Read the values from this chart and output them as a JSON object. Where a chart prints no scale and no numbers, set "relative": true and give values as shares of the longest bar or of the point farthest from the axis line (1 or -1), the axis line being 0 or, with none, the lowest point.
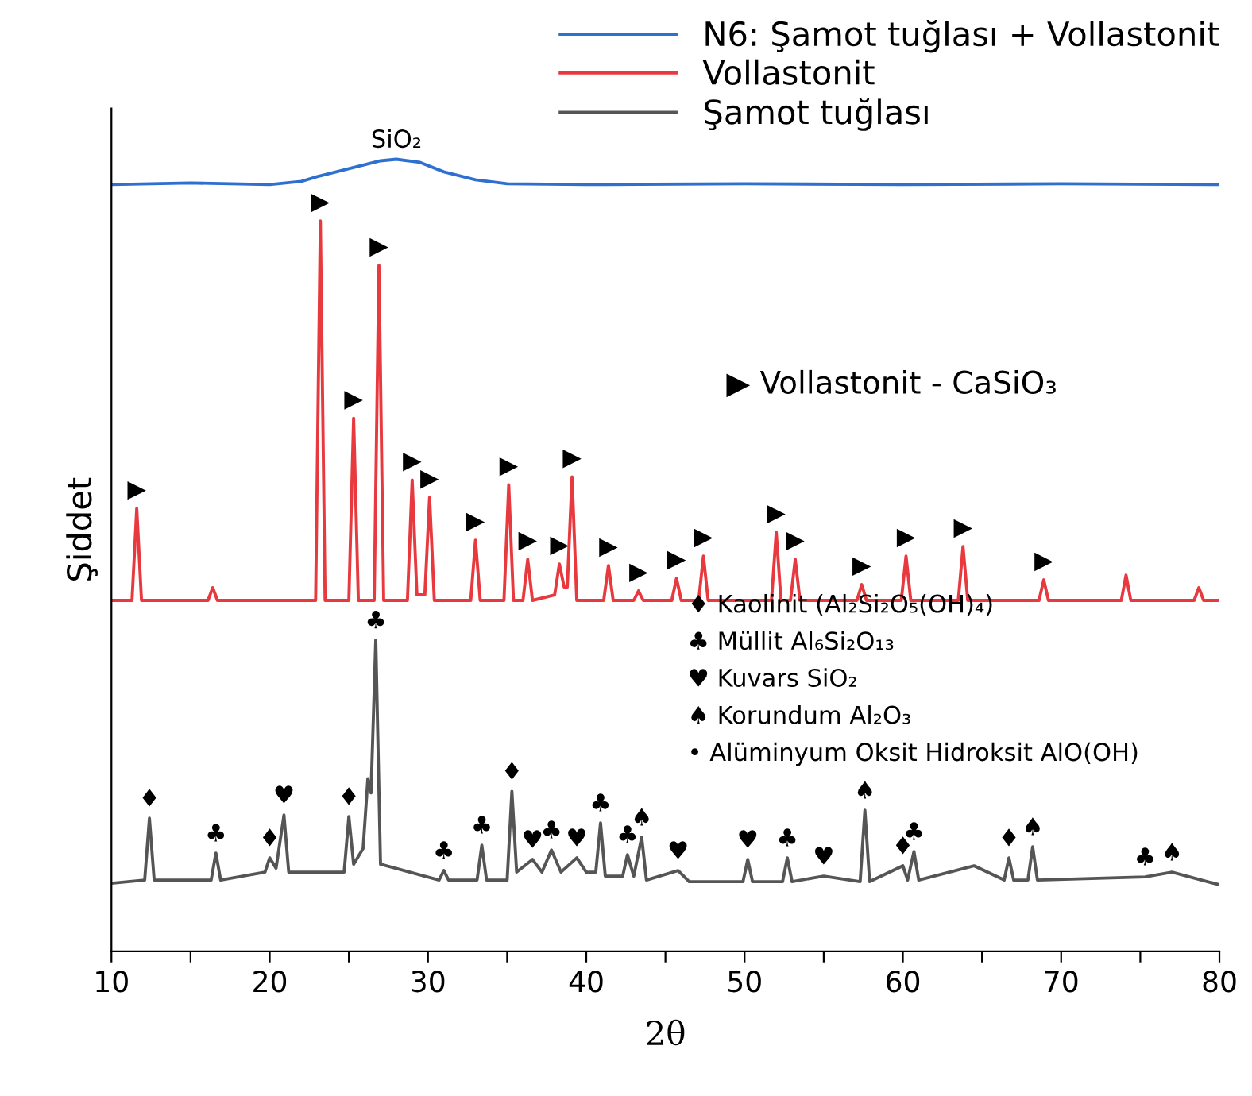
{
  "chart_data": {
    "type": "line",
    "relative": true,
    "xlabel": "2θ",
    "ylabel": "Şiddet",
    "legend": "top right",
    "grid": false,
    "xlim": [
      10,
      80
    ],
    "xticks": [
      10,
      {
        "value": 15,
        "label": null
      },
      20,
      {
        "value": 25,
        "label": null
      },
      30,
      {
        "value": 35,
        "label": null
      },
      40,
      {
        "value": 45,
        "label": null
      },
      50,
      {
        "value": 55,
        "label": null
      },
      60,
      {
        "value": 65,
        "label": null
      },
      70,
      {
        "value": 75,
        "label": null
      },
      80
    ],
    "series": [
      {
        "name": "N6: Şamot tuğlası + Vollastonit",
        "color": "#2f6fd0",
        "x": [
          10,
          15,
          20,
          22,
          23,
          25,
          27,
          28,
          29.5,
          31,
          33,
          35,
          40,
          50,
          60,
          70,
          80
        ],
        "values": [
          0.968,
          0.97,
          0.968,
          0.972,
          0.978,
          0.988,
          0.998,
          1.0,
          0.996,
          0.984,
          0.974,
          0.969,
          0.968,
          0.969,
          0.968,
          0.969,
          0.968
        ]
      },
      {
        "name": "Vollastonit",
        "color": "#e8393e",
        "x": [
          10,
          11.3,
          11.6,
          11.9,
          16.1,
          16.4,
          16.7,
          22.9,
          23.2,
          23.5,
          25.0,
          25.3,
          25.6,
          26.6,
          26.9,
          27.2,
          28.7,
          29.0,
          29.3,
          29.8,
          30.1,
          30.4,
          32.7,
          33.0,
          33.3,
          34.8,
          35.1,
          35.4,
          36.0,
          36.3,
          36.6,
          38.0,
          38.3,
          38.6,
          38.8,
          39.1,
          39.4,
          41.1,
          41.4,
          41.7,
          43.0,
          43.3,
          43.6,
          45.4,
          45.7,
          46.0,
          47.1,
          47.4,
          47.7,
          51.7,
          52.0,
          52.3,
          52.9,
          53.2,
          53.5,
          57.1,
          57.4,
          57.7,
          59.9,
          60.2,
          60.5,
          63.5,
          63.8,
          64.1,
          68.6,
          68.9,
          69.2,
          73.8,
          74.1,
          74.4,
          78.4,
          78.7,
          79.0,
          80
        ],
        "values": [
          0.443,
          0.443,
          0.559,
          0.443,
          0.443,
          0.459,
          0.443,
          0.443,
          0.922,
          0.443,
          0.443,
          0.673,
          0.443,
          0.443,
          0.866,
          0.443,
          0.443,
          0.595,
          0.45,
          0.45,
          0.573,
          0.443,
          0.443,
          0.519,
          0.443,
          0.443,
          0.589,
          0.443,
          0.443,
          0.495,
          0.443,
          0.45,
          0.489,
          0.46,
          0.46,
          0.599,
          0.443,
          0.443,
          0.487,
          0.443,
          0.443,
          0.455,
          0.443,
          0.443,
          0.471,
          0.443,
          0.443,
          0.499,
          0.443,
          0.443,
          0.529,
          0.443,
          0.443,
          0.495,
          0.443,
          0.443,
          0.463,
          0.443,
          0.443,
          0.499,
          0.443,
          0.443,
          0.511,
          0.443,
          0.443,
          0.469,
          0.443,
          0.443,
          0.475,
          0.443,
          0.443,
          0.459,
          0.443,
          0.443
        ]
      },
      {
        "name": "Şamot tuğlası",
        "color": "#555555",
        "x": [
          10,
          12.1,
          12.4,
          12.7,
          16.3,
          16.6,
          16.9,
          19.7,
          20.0,
          20.4,
          20.9,
          21.2,
          24.7,
          25.0,
          25.3,
          25.9,
          26.2,
          26.4,
          26.7,
          27.0,
          30.7,
          31.0,
          31.3,
          33.1,
          33.4,
          33.7,
          35.0,
          35.3,
          35.6,
          36.6,
          37.2,
          37.8,
          38.4,
          39.4,
          40.0,
          40.6,
          40.9,
          41.2,
          42.3,
          42.6,
          43.0,
          43.5,
          43.8,
          45.8,
          46.5,
          49.9,
          50.2,
          50.5,
          52.4,
          52.7,
          53.0,
          55.0,
          57.3,
          57.6,
          57.9,
          60.0,
          60.3,
          60.7,
          61.0,
          64.5,
          66.4,
          66.7,
          67.0,
          67.9,
          68.2,
          68.5,
          75.3,
          77.0,
          80
        ],
        "values": [
          0.086,
          0.09,
          0.168,
          0.09,
          0.09,
          0.124,
          0.09,
          0.1,
          0.118,
          0.105,
          0.172,
          0.1,
          0.1,
          0.17,
          0.11,
          0.13,
          0.218,
          0.2,
          0.393,
          0.11,
          0.09,
          0.102,
          0.09,
          0.09,
          0.134,
          0.09,
          0.09,
          0.202,
          0.1,
          0.116,
          0.1,
          0.128,
          0.1,
          0.118,
          0.1,
          0.1,
          0.162,
          0.095,
          0.095,
          0.122,
          0.095,
          0.144,
          0.09,
          0.102,
          0.088,
          0.088,
          0.116,
          0.088,
          0.088,
          0.118,
          0.088,
          0.095,
          0.088,
          0.178,
          0.088,
          0.108,
          0.09,
          0.126,
          0.09,
          0.108,
          0.09,
          0.118,
          0.09,
          0.09,
          0.132,
          0.09,
          0.094,
          0.1,
          0.084
        ]
      }
    ],
    "annotations": [
      "▶ Vollastonit - CaSiO₃",
      "♦ Kaolinit (Al₂Si₂O₅(OH)₄)",
      "♣ Müllit Al₆Si₂O₁₃",
      "♥ Kuvars SiO₂",
      "♠ Korundum Al₂O₃",
      "• Alüminyum Oksit Hidroksit AlO(OH)",
      {
        "text": "SiO₂",
        "x": 28,
        "y": 1.0
      },
      {
        "text": "▶",
        "x": 11.6,
        "y": 0.559
      },
      {
        "text": "▶",
        "x": 23.2,
        "y": 0.922
      },
      {
        "text": "▶",
        "x": 25.3,
        "y": 0.673
      },
      {
        "text": "▶",
        "x": 26.9,
        "y": 0.866
      },
      {
        "text": "▶",
        "x": 29.0,
        "y": 0.595
      },
      {
        "text": "▶",
        "x": 30.1,
        "y": 0.573
      },
      {
        "text": "▶",
        "x": 33.0,
        "y": 0.519
      },
      {
        "text": "▶",
        "x": 35.1,
        "y": 0.589
      },
      {
        "text": "▶",
        "x": 36.3,
        "y": 0.495
      },
      {
        "text": "▶",
        "x": 38.3,
        "y": 0.489
      },
      {
        "text": "▶",
        "x": 39.1,
        "y": 0.599
      },
      {
        "text": "▶",
        "x": 41.4,
        "y": 0.487
      },
      {
        "text": "▶",
        "x": 43.3,
        "y": 0.455
      },
      {
        "text": "▶",
        "x": 45.7,
        "y": 0.471
      },
      {
        "text": "▶",
        "x": 47.4,
        "y": 0.499
      },
      {
        "text": "▶",
        "x": 52.0,
        "y": 0.529
      },
      {
        "text": "▶",
        "x": 53.2,
        "y": 0.495
      },
      {
        "text": "▶",
        "x": 57.4,
        "y": 0.463
      },
      {
        "text": "▶",
        "x": 60.2,
        "y": 0.499
      },
      {
        "text": "▶",
        "x": 63.8,
        "y": 0.511
      },
      {
        "text": "▶",
        "x": 68.9,
        "y": 0.469
      },
      {
        "text": "♦",
        "x": 12.4,
        "y": 0.168
      },
      {
        "text": "♣",
        "x": 16.6,
        "y": 0.124
      },
      {
        "text": "♦",
        "x": 20.0,
        "y": 0.118
      },
      {
        "text": "♥",
        "x": 20.9,
        "y": 0.172
      },
      {
        "text": "♦",
        "x": 25.0,
        "y": 0.17
      },
      {
        "text": "♣",
        "x": 26.7,
        "y": 0.393
      },
      {
        "text": "♣",
        "x": 31.0,
        "y": 0.102
      },
      {
        "text": "♣",
        "x": 33.4,
        "y": 0.134
      },
      {
        "text": "♦",
        "x": 35.3,
        "y": 0.202
      },
      {
        "text": "♥",
        "x": 36.6,
        "y": 0.116
      },
      {
        "text": "♣",
        "x": 37.8,
        "y": 0.128
      },
      {
        "text": "♥",
        "x": 39.4,
        "y": 0.118
      },
      {
        "text": "♣",
        "x": 40.9,
        "y": 0.162
      },
      {
        "text": "♣",
        "x": 42.6,
        "y": 0.122
      },
      {
        "text": "♠",
        "x": 43.5,
        "y": 0.144
      },
      {
        "text": "♥",
        "x": 45.8,
        "y": 0.102
      },
      {
        "text": "♥",
        "x": 50.2,
        "y": 0.116
      },
      {
        "text": "♣",
        "x": 52.7,
        "y": 0.118
      },
      {
        "text": "♥",
        "x": 55.0,
        "y": 0.095
      },
      {
        "text": "♠",
        "x": 57.6,
        "y": 0.178
      },
      {
        "text": "♦",
        "x": 60.0,
        "y": 0.108
      },
      {
        "text": "♣",
        "x": 60.7,
        "y": 0.126
      },
      {
        "text": "♦",
        "x": 66.7,
        "y": 0.118
      },
      {
        "text": "♠",
        "x": 68.2,
        "y": 0.132
      },
      {
        "text": "♣",
        "x": 75.3,
        "y": 0.094
      },
      {
        "text": "♠",
        "x": 77.0,
        "y": 0.1
      }
    ]
  }
}
